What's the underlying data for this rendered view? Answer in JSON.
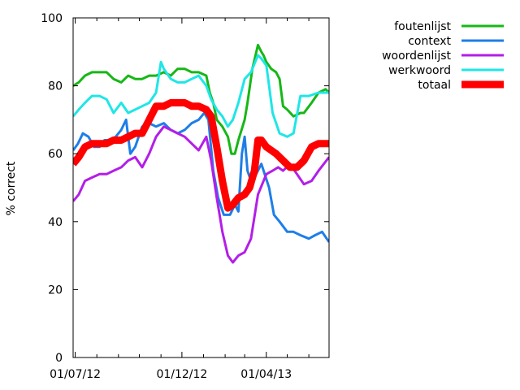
{
  "chart_data": {
    "type": "line",
    "title": "",
    "xlabel": "",
    "ylabel": "% correct",
    "ylim": [
      0,
      100
    ],
    "yticks": [
      0,
      20,
      40,
      60,
      80,
      100
    ],
    "xlim": [
      "2012-06-28",
      "2013-06-30"
    ],
    "xticks": [
      {
        "label": "01/07/12",
        "date": "2012-07-01"
      },
      {
        "label": "01/12/12",
        "date": "2012-12-01"
      },
      {
        "label": "01/04/13",
        "date": "2013-04-01"
      }
    ],
    "minor_xticks": [
      "2012-08-01",
      "2012-09-01",
      "2012-10-01",
      "2012-11-01",
      "2013-01-01",
      "2013-02-01",
      "2013-03-01",
      "2013-05-01",
      "2013-06-01"
    ],
    "legend_position": "top-right",
    "grid": false,
    "series": [
      {
        "name": "foutenlijst",
        "color": "#16b716",
        "width": 3,
        "x": [
          "2012-06-28",
          "2012-07-06",
          "2012-07-15",
          "2012-07-25",
          "2012-08-05",
          "2012-08-15",
          "2012-08-25",
          "2012-09-05",
          "2012-09-15",
          "2012-09-25",
          "2012-10-05",
          "2012-10-15",
          "2012-10-25",
          "2012-11-05",
          "2012-11-15",
          "2012-11-25",
          "2012-12-05",
          "2012-12-15",
          "2012-12-25",
          "2013-01-05",
          "2013-01-10",
          "2013-01-15",
          "2013-01-20",
          "2013-01-28",
          "2013-02-05",
          "2013-02-10",
          "2013-02-15",
          "2013-02-20",
          "2013-03-01",
          "2013-03-05",
          "2013-03-12",
          "2013-03-20",
          "2013-03-25",
          "2013-03-28",
          "2013-04-01",
          "2013-04-08",
          "2013-04-15",
          "2013-04-20",
          "2013-04-25",
          "2013-05-01",
          "2013-05-10",
          "2013-05-20",
          "2013-05-25",
          "2013-06-05",
          "2013-06-15",
          "2013-06-25",
          "2013-06-30"
        ],
        "y": [
          80,
          81,
          83,
          84,
          84,
          84,
          82,
          81,
          83,
          82,
          82,
          83,
          83,
          84,
          83,
          85,
          85,
          84,
          84,
          83,
          78,
          75,
          70,
          68,
          65,
          60,
          60,
          64,
          70,
          75,
          85,
          92,
          90,
          89,
          87,
          85,
          84,
          82,
          74,
          73,
          71,
          72,
          72,
          75,
          78,
          79,
          78
        ]
      },
      {
        "name": "context",
        "color": "#1e7ee8",
        "width": 3,
        "x": [
          "2012-06-28",
          "2012-07-05",
          "2012-07-12",
          "2012-07-20",
          "2012-07-28",
          "2012-08-05",
          "2012-08-12",
          "2012-08-20",
          "2012-08-28",
          "2012-09-05",
          "2012-09-12",
          "2012-09-18",
          "2012-09-25",
          "2012-10-05",
          "2012-10-15",
          "2012-10-25",
          "2012-11-05",
          "2012-11-15",
          "2012-11-25",
          "2012-12-05",
          "2012-12-15",
          "2012-12-25",
          "2013-01-02",
          "2013-01-08",
          "2013-01-15",
          "2013-01-22",
          "2013-01-30",
          "2013-02-08",
          "2013-02-15",
          "2013-02-20",
          "2013-02-25",
          "2013-03-01",
          "2013-03-05",
          "2013-03-10",
          "2013-03-15",
          "2013-03-25",
          "2013-04-05",
          "2013-04-12",
          "2013-04-20",
          "2013-05-01",
          "2013-05-10",
          "2013-05-20",
          "2013-06-01",
          "2013-06-10",
          "2013-06-20",
          "2013-06-30"
        ],
        "y": [
          61,
          63,
          66,
          65,
          62,
          62,
          64,
          64,
          65,
          67,
          70,
          60,
          62,
          68,
          69,
          68,
          69,
          67,
          66,
          67,
          69,
          70,
          72,
          70,
          55,
          47,
          42,
          42,
          45,
          43,
          60,
          65,
          55,
          52,
          53,
          57,
          50,
          42,
          40,
          37,
          37,
          36,
          35,
          36,
          37,
          34
        ]
      },
      {
        "name": "woordenlijst",
        "color": "#b31ee8",
        "width": 3,
        "x": [
          "2012-06-28",
          "2012-07-06",
          "2012-07-15",
          "2012-07-25",
          "2012-08-05",
          "2012-08-15",
          "2012-08-25",
          "2012-09-05",
          "2012-09-15",
          "2012-09-25",
          "2012-10-05",
          "2012-10-15",
          "2012-10-25",
          "2012-11-05",
          "2012-11-15",
          "2012-11-25",
          "2012-12-05",
          "2012-12-15",
          "2012-12-25",
          "2013-01-05",
          "2013-01-12",
          "2013-01-20",
          "2013-01-28",
          "2013-02-05",
          "2013-02-12",
          "2013-02-20",
          "2013-03-01",
          "2013-03-10",
          "2013-03-20",
          "2013-04-01",
          "2013-04-10",
          "2013-04-18",
          "2013-04-25",
          "2013-05-05",
          "2013-05-15",
          "2013-05-25",
          "2013-06-05",
          "2013-06-15",
          "2013-06-30"
        ],
        "y": [
          46,
          48,
          52,
          53,
          54,
          54,
          55,
          56,
          58,
          59,
          56,
          60,
          65,
          68,
          67,
          66,
          65,
          63,
          61,
          65,
          58,
          47,
          37,
          30,
          28,
          30,
          31,
          35,
          48,
          54,
          55,
          56,
          55,
          57,
          54,
          51,
          52,
          55,
          59
        ]
      },
      {
        "name": "werkwoord",
        "color": "#1fe6e6",
        "width": 3,
        "x": [
          "2012-06-28",
          "2012-07-06",
          "2012-07-15",
          "2012-07-25",
          "2012-08-05",
          "2012-08-15",
          "2012-08-25",
          "2012-09-05",
          "2012-09-15",
          "2012-09-25",
          "2012-10-05",
          "2012-10-15",
          "2012-10-25",
          "2012-11-01",
          "2012-11-05",
          "2012-11-15",
          "2012-11-25",
          "2012-12-05",
          "2012-12-15",
          "2012-12-25",
          "2013-01-05",
          "2013-01-12",
          "2013-01-20",
          "2013-01-28",
          "2013-02-05",
          "2013-02-12",
          "2013-02-20",
          "2013-03-01",
          "2013-03-10",
          "2013-03-20",
          "2013-03-25",
          "2013-04-01",
          "2013-04-05",
          "2013-04-10",
          "2013-04-20",
          "2013-05-01",
          "2013-05-10",
          "2013-05-20",
          "2013-06-01",
          "2013-06-15",
          "2013-06-30"
        ],
        "y": [
          71,
          73,
          75,
          77,
          77,
          76,
          72,
          75,
          72,
          73,
          74,
          75,
          78,
          87,
          85,
          82,
          81,
          81,
          82,
          83,
          80,
          76,
          73,
          71,
          68,
          70,
          75,
          82,
          84,
          89,
          88,
          86,
          80,
          72,
          66,
          65,
          66,
          77,
          77,
          78,
          78
        ]
      },
      {
        "name": "totaal",
        "color": "#ff0000",
        "width": 9,
        "x": [
          "2012-06-28",
          "2012-07-06",
          "2012-07-15",
          "2012-07-25",
          "2012-08-05",
          "2012-08-15",
          "2012-08-25",
          "2012-09-05",
          "2012-09-15",
          "2012-09-25",
          "2012-10-05",
          "2012-10-15",
          "2012-10-25",
          "2012-11-05",
          "2012-11-15",
          "2012-11-25",
          "2012-12-05",
          "2012-12-15",
          "2012-12-25",
          "2013-01-05",
          "2013-01-12",
          "2013-01-20",
          "2013-01-28",
          "2013-02-05",
          "2013-02-12",
          "2013-02-20",
          "2013-03-01",
          "2013-03-08",
          "2013-03-15",
          "2013-03-20",
          "2013-03-25",
          "2013-04-01",
          "2013-04-08",
          "2013-04-15",
          "2013-04-25",
          "2013-05-05",
          "2013-05-15",
          "2013-05-25",
          "2013-06-05",
          "2013-06-15",
          "2013-06-30"
        ],
        "y": [
          57,
          59,
          62,
          63,
          63,
          63,
          64,
          64,
          65,
          66,
          66,
          70,
          74,
          74,
          75,
          75,
          75,
          74,
          74,
          73,
          71,
          62,
          52,
          44,
          45,
          47,
          48,
          50,
          55,
          64,
          64,
          62,
          61,
          60,
          58,
          56,
          56,
          58,
          62,
          63,
          63
        ]
      }
    ]
  }
}
